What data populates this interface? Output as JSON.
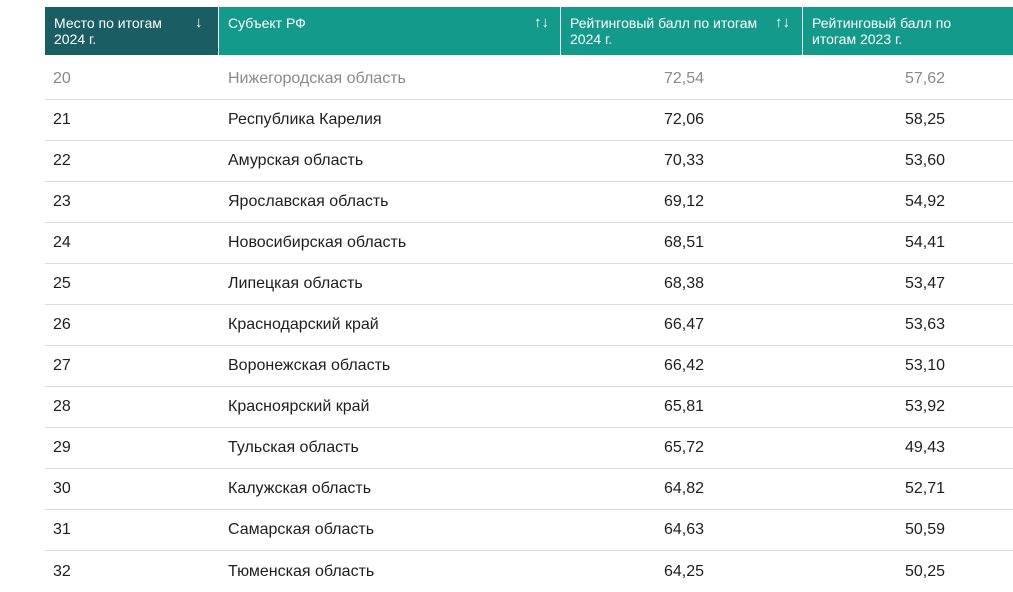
{
  "table": {
    "headers": {
      "rank": "Место по итогам 2024 г.",
      "region": "Субъект РФ",
      "score2024": "Рейтинговый балл по итогам 2024 г.",
      "score2023": "Рейтинговый балл по итогам 2023 г."
    },
    "sort_icons": {
      "rank": "↓",
      "region": "↑↓",
      "score2024": "↑↓"
    },
    "rows": [
      {
        "rank": "20",
        "region": "Нижегородская область",
        "score2024": "72,54",
        "score2023": "57,62"
      },
      {
        "rank": "21",
        "region": "Республика Карелия",
        "score2024": "72,06",
        "score2023": "58,25"
      },
      {
        "rank": "22",
        "region": "Амурская область",
        "score2024": "70,33",
        "score2023": "53,60"
      },
      {
        "rank": "23",
        "region": "Ярославская область",
        "score2024": "69,12",
        "score2023": "54,92"
      },
      {
        "rank": "24",
        "region": "Новосибирская область",
        "score2024": "68,51",
        "score2023": "54,41"
      },
      {
        "rank": "25",
        "region": "Липецкая область",
        "score2024": "68,38",
        "score2023": "53,47"
      },
      {
        "rank": "26",
        "region": "Краснодарский край",
        "score2024": "66,47",
        "score2023": "53,63"
      },
      {
        "rank": "27",
        "region": "Воронежская область",
        "score2024": "66,42",
        "score2023": "53,10"
      },
      {
        "rank": "28",
        "region": "Красноярский край",
        "score2024": "65,81",
        "score2023": "53,92"
      },
      {
        "rank": "29",
        "region": "Тульская область",
        "score2024": "65,72",
        "score2023": "49,43"
      },
      {
        "rank": "30",
        "region": "Калужская область",
        "score2024": "64,82",
        "score2023": "52,71"
      },
      {
        "rank": "31",
        "region": "Самарская область",
        "score2024": "64,63",
        "score2023": "50,59"
      },
      {
        "rank": "32",
        "region": "Тюменская область",
        "score2024": "64,25",
        "score2023": "50,25"
      }
    ]
  },
  "colors": {
    "header_active": "#1a5e63",
    "header": "#139a8b",
    "row_border": "#dcdcdc"
  }
}
